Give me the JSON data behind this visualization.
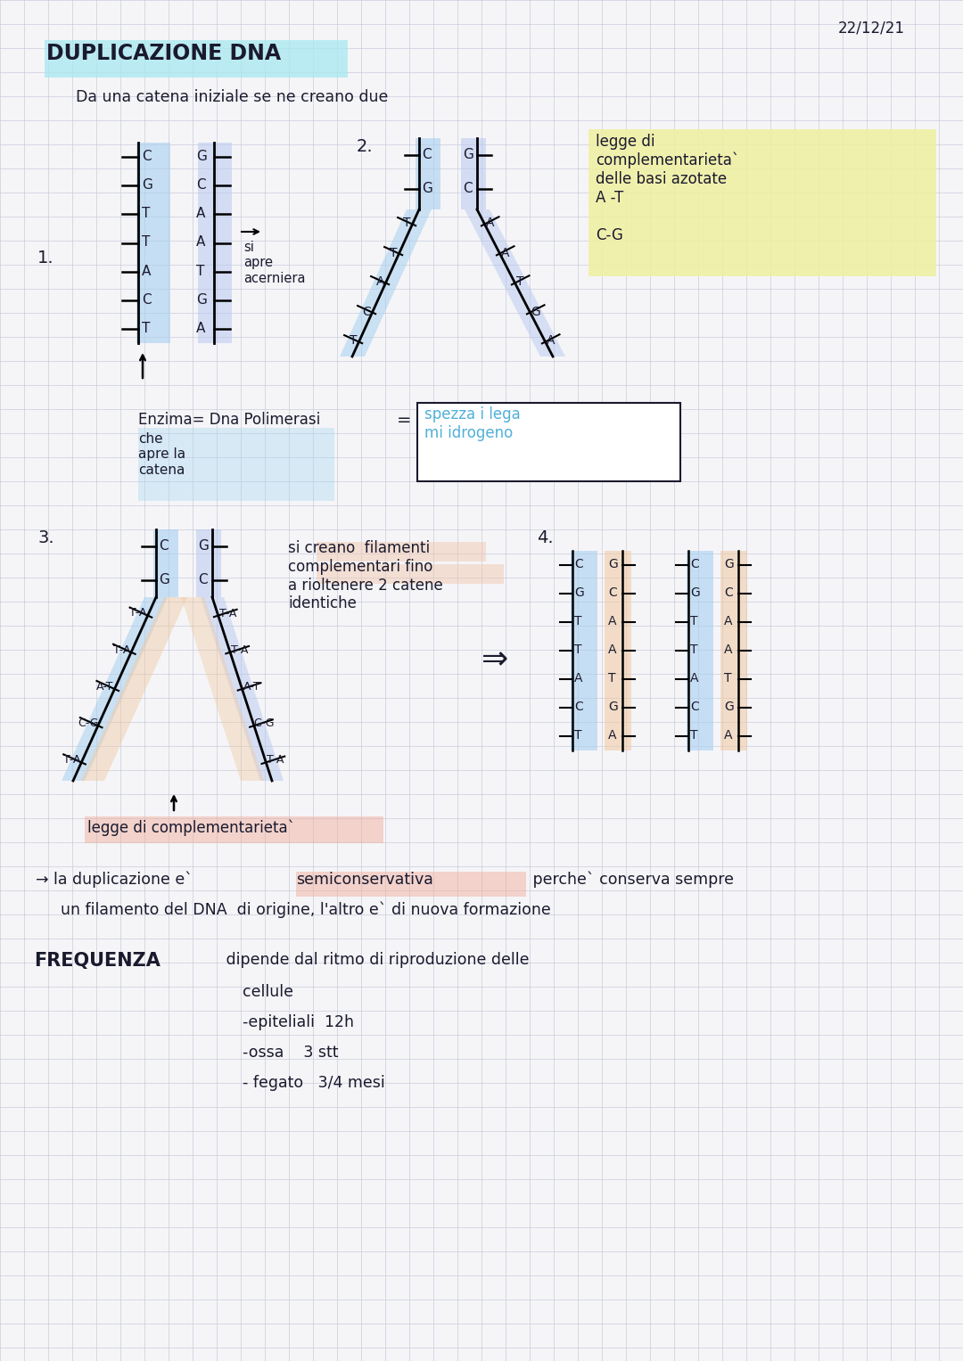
{
  "bg_color": "#f5f5f8",
  "grid_color": "#c5c8d8",
  "date": "22/12/21",
  "title": "DUPLICAZIONE DNA",
  "subtitle": "Da una catena iniziale se ne creano due",
  "title_bg": "#a8e8f0",
  "legge_bg": "#f0f0a0",
  "blue1": "#a8d0f0",
  "blue2": "#b8c8f0",
  "orange1": "#f0c8a0",
  "pink1": "#f0a898",
  "spezza_color": "#50b0d8",
  "enzima_highlight": "#a8d8f0",
  "filamenti_highlight": "#f0c8b0",
  "legge_comp_highlight": "#f0b0a0",
  "semicons_highlight": "#f0b0a0",
  "dna1_pairs": [
    [
      "C",
      "G"
    ],
    [
      "G",
      "C"
    ],
    [
      "T",
      "A"
    ],
    [
      "T",
      "A"
    ],
    [
      "A",
      "T"
    ],
    [
      "C",
      "G"
    ],
    [
      "T",
      "A"
    ]
  ],
  "dna4_pairs": [
    [
      "C",
      "G"
    ],
    [
      "G",
      "C"
    ],
    [
      "T",
      "A"
    ],
    [
      "T",
      "A"
    ],
    [
      "A",
      "T"
    ],
    [
      "C",
      "G"
    ],
    [
      "T",
      "A"
    ]
  ]
}
